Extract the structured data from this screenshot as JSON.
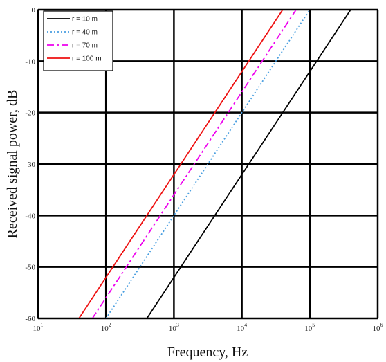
{
  "chart_data": {
    "type": "line",
    "xscale": "log",
    "xlim": [
      10,
      1000000
    ],
    "ylim": [
      -60,
      0
    ],
    "grid": true,
    "legend_position": "top-left",
    "xlabel": "Frequency, Hz",
    "ylabel": "Received signal power, dB",
    "xticks": [
      {
        "base": "10",
        "exp": "1"
      },
      {
        "base": "10",
        "exp": "2"
      },
      {
        "base": "10",
        "exp": "3"
      },
      {
        "base": "10",
        "exp": "4"
      },
      {
        "base": "10",
        "exp": "5"
      },
      {
        "base": "10",
        "exp": "6"
      }
    ],
    "yticks": [
      "0",
      "-10",
      "-20",
      "-30",
      "-40",
      "-50",
      "-60"
    ],
    "series": [
      {
        "name": "r = 10 m",
        "color": "#000000",
        "dash": "solid",
        "x": [
          400,
          400000
        ],
        "y": [
          -60,
          0
        ]
      },
      {
        "name": "r = 40 m",
        "color": "#4a9fe0",
        "dash": "dotted",
        "x": [
          100,
          100000
        ],
        "y": [
          -60,
          0
        ]
      },
      {
        "name": "r = 70 m",
        "color": "#ee00ee",
        "dash": "dashdot",
        "x": [
          63,
          63000
        ],
        "y": [
          -60,
          0
        ]
      },
      {
        "name": "r = 100 m",
        "color": "#ee1111",
        "dash": "solid",
        "x": [
          40,
          40000
        ],
        "y": [
          -60,
          0
        ]
      }
    ]
  }
}
